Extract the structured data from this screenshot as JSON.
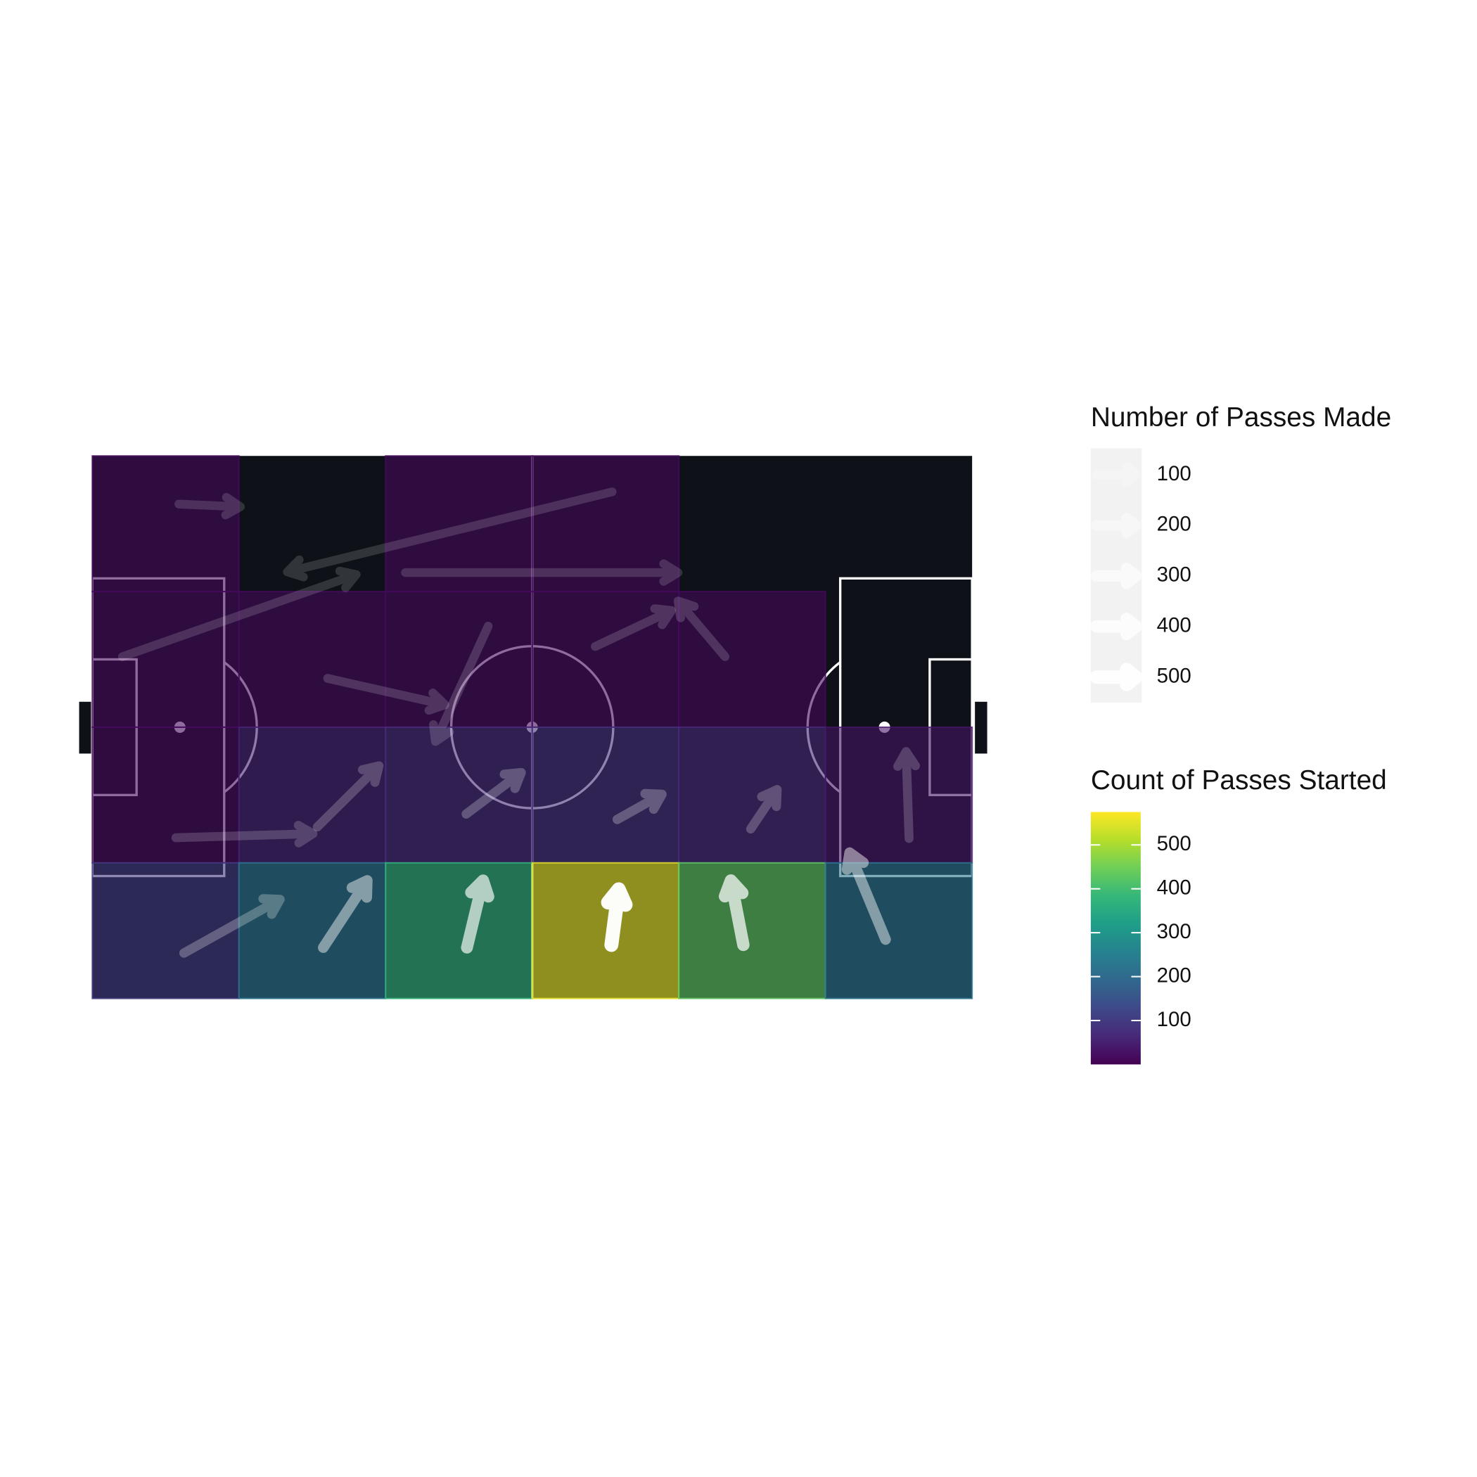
{
  "chart_data": {
    "type": "pass-map",
    "xlim": [
      0,
      120
    ],
    "ylim": [
      0,
      80
    ],
    "x_bins": [
      0,
      20,
      40,
      60,
      80,
      100,
      120
    ],
    "y_bins": [
      0,
      20,
      40,
      60,
      80
    ],
    "counts": [
      [
        15,
        null,
        15,
        15,
        null,
        null
      ],
      [
        15,
        15,
        15,
        15,
        15,
        null
      ],
      [
        15,
        55,
        70,
        80,
        65,
        35
      ],
      [
        100,
        220,
        375,
        555,
        430,
        220
      ]
    ],
    "colorscale": [
      "#440154",
      "#482878",
      "#3e4989",
      "#31688e",
      "#26828e",
      "#1f9e89",
      "#35b779",
      "#6ece58",
      "#b5de2b",
      "#fde725"
    ],
    "clim": [
      0,
      575
    ],
    "cticks": [
      100,
      200,
      300,
      400,
      500
    ],
    "fill_opacity": 0.6,
    "color_legend_title": "Count of Passes Started",
    "arrows": [
      {
        "x": 11.8,
        "y": 7.1,
        "xend": 20.2,
        "yend": 7.5,
        "count": 20
      },
      {
        "x": 70.9,
        "y": 5.3,
        "xend": 26.6,
        "yend": 17.1,
        "count": 20
      },
      {
        "x": 42.7,
        "y": 17.2,
        "xend": 79.9,
        "yend": 17.2,
        "count": 20
      },
      {
        "x": 4.1,
        "y": 29.6,
        "xend": 36.0,
        "yend": 17.5,
        "count": 20
      },
      {
        "x": 32.1,
        "y": 32.8,
        "xend": 48.1,
        "yend": 36.7,
        "count": 30
      },
      {
        "x": 54.0,
        "y": 25.1,
        "xend": 46.8,
        "yend": 42.1,
        "count": 30
      },
      {
        "x": 68.6,
        "y": 28.1,
        "xend": 79.0,
        "yend": 22.8,
        "count": 30
      },
      {
        "x": 86.3,
        "y": 29.6,
        "xend": 79.9,
        "yend": 21.4,
        "count": 30
      },
      {
        "x": 11.4,
        "y": 56.3,
        "xend": 30.1,
        "yend": 55.7,
        "count": 40
      },
      {
        "x": 30.7,
        "y": 54.7,
        "xend": 39.1,
        "yend": 45.7,
        "count": 60
      },
      {
        "x": 51.0,
        "y": 52.8,
        "xend": 58.5,
        "yend": 46.7,
        "count": 80
      },
      {
        "x": 71.6,
        "y": 53.6,
        "xend": 77.7,
        "yend": 49.9,
        "count": 90
      },
      {
        "x": 89.8,
        "y": 55.0,
        "xend": 93.4,
        "yend": 49.2,
        "count": 70
      },
      {
        "x": 111.4,
        "y": 56.4,
        "xend": 111.0,
        "yend": 43.6,
        "count": 50
      },
      {
        "x": 12.5,
        "y": 73.3,
        "xend": 25.6,
        "yend": 65.4,
        "count": 90
      },
      {
        "x": 31.5,
        "y": 72.5,
        "xend": 37.5,
        "yend": 62.6,
        "count": 220
      },
      {
        "x": 51.1,
        "y": 72.5,
        "xend": 53.3,
        "yend": 62.6,
        "count": 350
      },
      {
        "x": 70.8,
        "y": 72.1,
        "xend": 71.8,
        "yend": 63.9,
        "count": 560
      },
      {
        "x": 88.8,
        "y": 72.1,
        "xend": 87.1,
        "yend": 62.6,
        "count": 390
      },
      {
        "x": 108.2,
        "y": 71.3,
        "xend": 103.3,
        "yend": 58.5,
        "count": 220
      }
    ],
    "arrow_color": "#ffffff",
    "size_legend_title": "Number of Passes Made",
    "size_ticks": [
      100,
      200,
      300,
      400,
      500
    ],
    "size_lim": [
      0,
      575
    ]
  }
}
